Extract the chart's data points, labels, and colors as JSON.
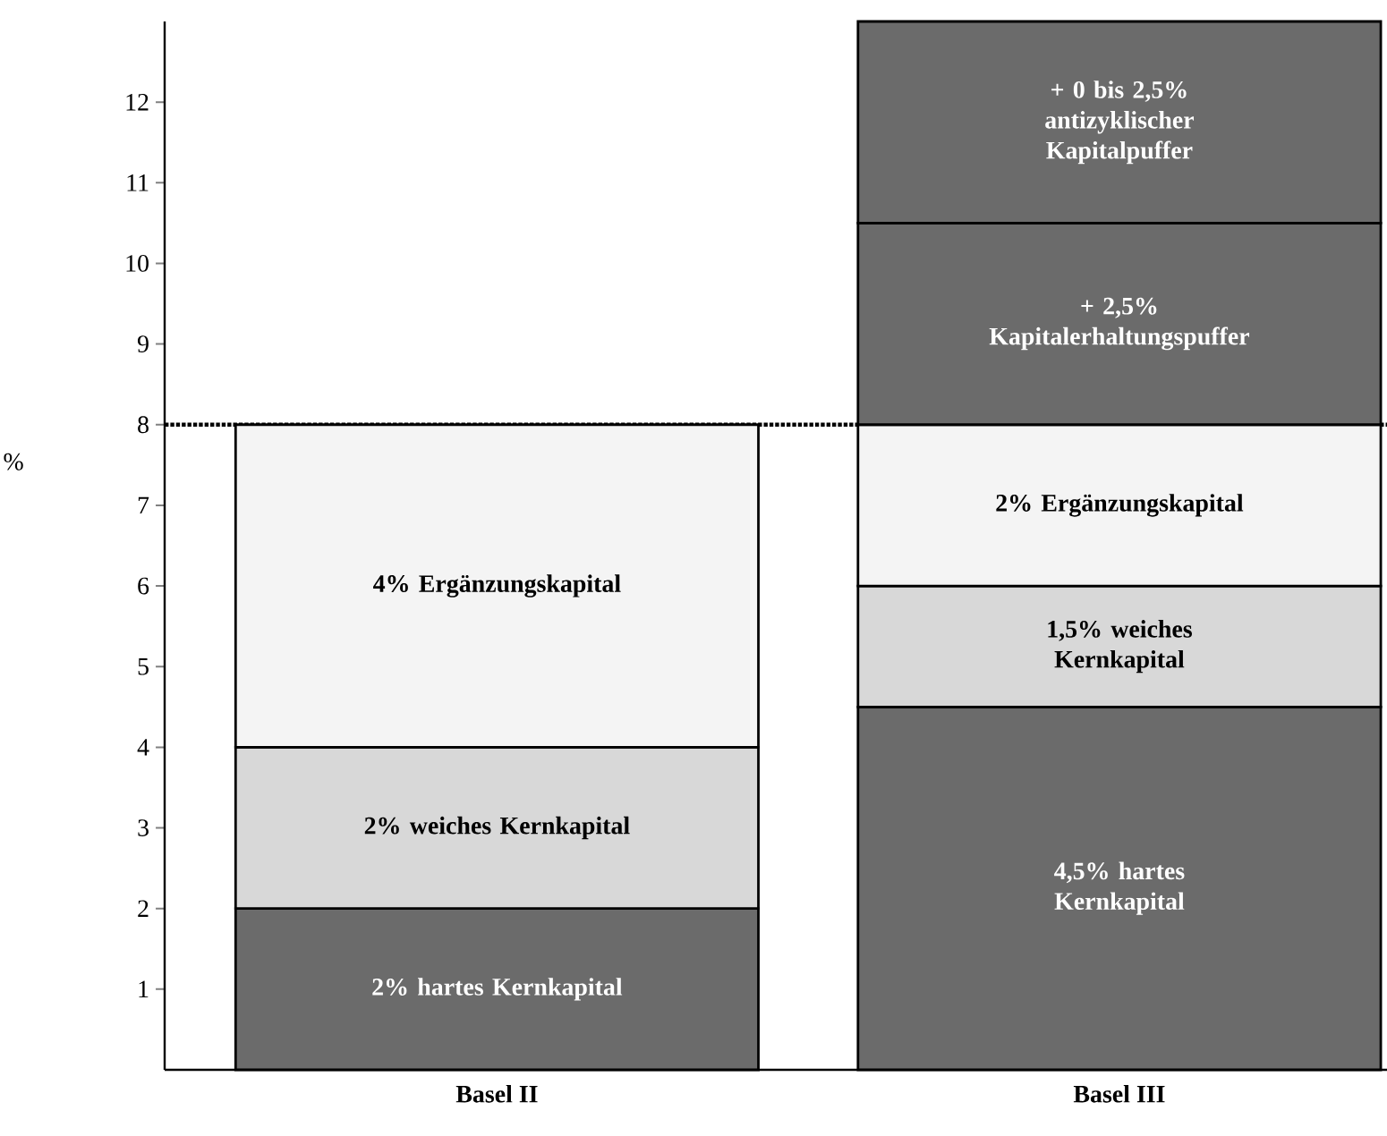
{
  "chart_data": {
    "type": "bar",
    "stacked": true,
    "ylabel": "%",
    "categories": [
      "Basel II",
      "Basel III"
    ],
    "series": [
      {
        "color": "#6b6b6b",
        "values": [
          2,
          4.5
        ],
        "value_labels": [
          "2% hartes Kernkapital",
          "4,5% hartes Kernkapital"
        ]
      },
      {
        "color": "#d8d8d8",
        "values": [
          2,
          1.5
        ],
        "value_labels": [
          "2% weiches Kernkapital",
          "1,5% weiches Kernkapital"
        ]
      },
      {
        "color": "#f4f4f4",
        "values": [
          4,
          2
        ],
        "value_labels": [
          "4% Ergänzungskapital",
          "2% Ergänzungskapital"
        ]
      },
      {
        "color": "#6b6b6b",
        "values": [
          null,
          2.5
        ],
        "value_labels": [
          null,
          "+ 2,5% Kapitalerhaltungspuffer"
        ]
      },
      {
        "color": "#6b6b6b",
        "values": [
          null,
          2.5
        ],
        "value_labels": [
          null,
          "+ 0 bis 2,5% antizyklischer Kapitalpuffer"
        ]
      }
    ],
    "ylim": [
      0,
      13
    ],
    "yticks": [
      1,
      2,
      3,
      4,
      5,
      6,
      7,
      8,
      9,
      10,
      11,
      12
    ],
    "ref_lines": [
      {
        "axis": "y",
        "value": 8,
        "line_style": "dotted",
        "color": "#000000"
      }
    ]
  }
}
